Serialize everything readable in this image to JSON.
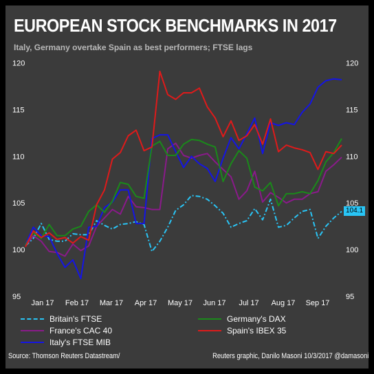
{
  "header": {
    "title": "EUROPEAN STOCK BENCHMARKS IN 2017",
    "subtitle": "Italy, Germany overtake Spain as best performers; FTSE lags"
  },
  "footer": {
    "source": "Source: Thomson Reuters Datastream/",
    "credit": "Reuters graphic, Danilo Masoni 10/3/2017 @damasoni"
  },
  "last_value_label": "104.1",
  "chart_data": {
    "type": "line",
    "title": "EUROPEAN STOCK BENCHMARKS IN 2017",
    "subtitle": "Italy, Germany overtake Spain as best performers; FTSE lags",
    "ylim": [
      95,
      121
    ],
    "xlim": [
      0,
      9.2
    ],
    "yticks": [
      95,
      100,
      105,
      110,
      115,
      120
    ],
    "xticks": [
      {
        "label": "Jan 17",
        "pos": 0.5
      },
      {
        "label": "Feb 17",
        "pos": 1.5
      },
      {
        "label": "Mar 17",
        "pos": 2.5
      },
      {
        "label": "Apr 17",
        "pos": 3.5
      },
      {
        "label": "May 17",
        "pos": 4.5
      },
      {
        "label": "Jun 17",
        "pos": 5.5
      },
      {
        "label": "Jul 17",
        "pos": 6.5
      },
      {
        "label": "Aug 17",
        "pos": 7.5
      },
      {
        "label": "Sep 17",
        "pos": 8.5
      }
    ],
    "legend_position": "bottom",
    "grid": false,
    "series": [
      {
        "name": "Britain's FTSE",
        "color": "#29c5f6",
        "dash": "dashdot",
        "x": [
          0,
          0.23,
          0.46,
          0.69,
          0.92,
          1.15,
          1.38,
          1.61,
          1.84,
          2.07,
          2.3,
          2.53,
          2.76,
          2.99,
          3.22,
          3.45,
          3.68,
          3.91,
          4.14,
          4.37,
          4.6,
          4.83,
          5.06,
          5.29,
          5.52,
          5.75,
          5.98,
          6.21,
          6.44,
          6.67,
          6.9,
          7.13,
          7.36,
          7.59,
          7.82,
          8.05,
          8.28,
          8.51,
          8.74,
          8.97,
          9.2
        ],
        "values": [
          100.4,
          101.2,
          102.8,
          101.1,
          100.9,
          100.9,
          101.7,
          101.6,
          101.6,
          103.1,
          102.6,
          102.2,
          102.7,
          102.8,
          103.0,
          102.7,
          99.8,
          100.9,
          102.4,
          104.2,
          104.8,
          105.8,
          105.7,
          105.4,
          104.7,
          103.9,
          102.4,
          102.8,
          103.1,
          104.4,
          103.2,
          105.4,
          102.4,
          102.6,
          103.4,
          104.1,
          104.3,
          101.2,
          102.5,
          103.4,
          104.1
        ]
      },
      {
        "name": "France's CAC 40",
        "color": "#8b1a8b",
        "dash": "solid",
        "x": [
          0,
          0.23,
          0.46,
          0.69,
          0.92,
          1.15,
          1.38,
          1.61,
          1.84,
          2.07,
          2.3,
          2.53,
          2.76,
          2.99,
          3.22,
          3.45,
          3.68,
          3.91,
          4.14,
          4.37,
          4.6,
          4.83,
          5.06,
          5.29,
          5.52,
          5.75,
          5.98,
          6.21,
          6.44,
          6.67,
          6.9,
          7.13,
          7.36,
          7.59,
          7.82,
          8.05,
          8.28,
          8.51,
          8.74,
          8.97,
          9.2
        ],
        "values": [
          100.4,
          101.5,
          100.9,
          99.8,
          99.7,
          99.3,
          100.6,
          99.9,
          100.4,
          102.5,
          103.4,
          104.3,
          103.8,
          105.7,
          104.6,
          104.5,
          104.3,
          104.3,
          110.8,
          111.4,
          110.1,
          109.8,
          110.1,
          110.3,
          109.4,
          108.6,
          107.8,
          105.4,
          106.3,
          108.4,
          105.1,
          106.1,
          105.6,
          105.0,
          105.4,
          105.4,
          106.0,
          106.2,
          108.4,
          109.1,
          109.9
        ]
      },
      {
        "name": "Italy's FTSE MIB",
        "color": "#1414e6",
        "dash": "solid",
        "x": [
          0,
          0.23,
          0.46,
          0.69,
          0.92,
          1.15,
          1.38,
          1.61,
          1.84,
          2.07,
          2.3,
          2.53,
          2.76,
          2.99,
          3.22,
          3.45,
          3.68,
          3.91,
          4.14,
          4.37,
          4.6,
          4.83,
          5.06,
          5.29,
          5.52,
          5.75,
          5.98,
          6.21,
          6.44,
          6.67,
          6.9,
          7.13,
          7.36,
          7.59,
          7.82,
          8.05,
          8.28,
          8.51,
          8.74,
          8.97,
          9.2
        ],
        "values": [
          100.5,
          102.4,
          101.5,
          101.4,
          99.6,
          98.1,
          98.9,
          96.9,
          102.4,
          102.5,
          104.5,
          105.1,
          106.4,
          106.4,
          102.8,
          102.8,
          111.9,
          112.3,
          112.3,
          110.5,
          108.8,
          110.0,
          109.2,
          108.7,
          107.3,
          109.8,
          112.0,
          110.8,
          112.4,
          114.1,
          110.3,
          113.6,
          113.3,
          113.6,
          113.4,
          114.7,
          115.6,
          117.4,
          118.1,
          118.3,
          118.2
        ]
      },
      {
        "name": "Germany's DAX",
        "color": "#1a8a1a",
        "dash": "solid",
        "x": [
          0,
          0.23,
          0.46,
          0.69,
          0.92,
          1.15,
          1.38,
          1.61,
          1.84,
          2.07,
          2.3,
          2.53,
          2.76,
          2.99,
          3.22,
          3.45,
          3.68,
          3.91,
          4.14,
          4.37,
          4.6,
          4.83,
          5.06,
          5.29,
          5.52,
          5.75,
          5.98,
          6.21,
          6.44,
          6.67,
          6.9,
          7.13,
          7.36,
          7.59,
          7.82,
          8.05,
          8.28,
          8.51,
          8.74,
          8.97,
          9.2
        ],
        "values": [
          100.5,
          101.8,
          101.2,
          102.7,
          101.5,
          101.5,
          102.2,
          102.5,
          104.1,
          104.8,
          104.0,
          105.2,
          107.2,
          107.0,
          105.7,
          105.5,
          111.1,
          111.6,
          110.1,
          110.1,
          111.3,
          111.8,
          111.7,
          111.3,
          111.0,
          107.3,
          109.2,
          110.6,
          109.8,
          106.7,
          106.3,
          107.2,
          104.7,
          106.0,
          106.0,
          106.2,
          106.0,
          107.4,
          109.4,
          110.4,
          111.9
        ]
      },
      {
        "name": "Spain's IBEX 35",
        "color": "#e01a1a",
        "dash": "solid",
        "x": [
          0,
          0.23,
          0.46,
          0.69,
          0.92,
          1.15,
          1.38,
          1.61,
          1.84,
          2.07,
          2.3,
          2.53,
          2.76,
          2.99,
          3.22,
          3.45,
          3.68,
          3.91,
          4.14,
          4.37,
          4.6,
          4.83,
          5.06,
          5.29,
          5.52,
          5.75,
          5.98,
          6.21,
          6.44,
          6.67,
          6.9,
          7.13,
          7.36,
          7.59,
          7.82,
          8.05,
          8.28,
          8.51,
          8.74,
          8.97,
          9.2
        ],
        "values": [
          100.3,
          102.0,
          101.3,
          101.8,
          101.1,
          101.3,
          100.7,
          101.4,
          101.0,
          104.8,
          106.4,
          109.7,
          110.4,
          112.2,
          112.8,
          110.6,
          111.0,
          119.1,
          116.6,
          116.1,
          116.8,
          116.8,
          117.3,
          115.3,
          114.1,
          112.1,
          113.8,
          111.7,
          112.2,
          113.4,
          111.3,
          114.0,
          110.5,
          111.2,
          110.9,
          110.7,
          110.4,
          108.6,
          110.5,
          110.3,
          111.2
        ]
      }
    ]
  }
}
